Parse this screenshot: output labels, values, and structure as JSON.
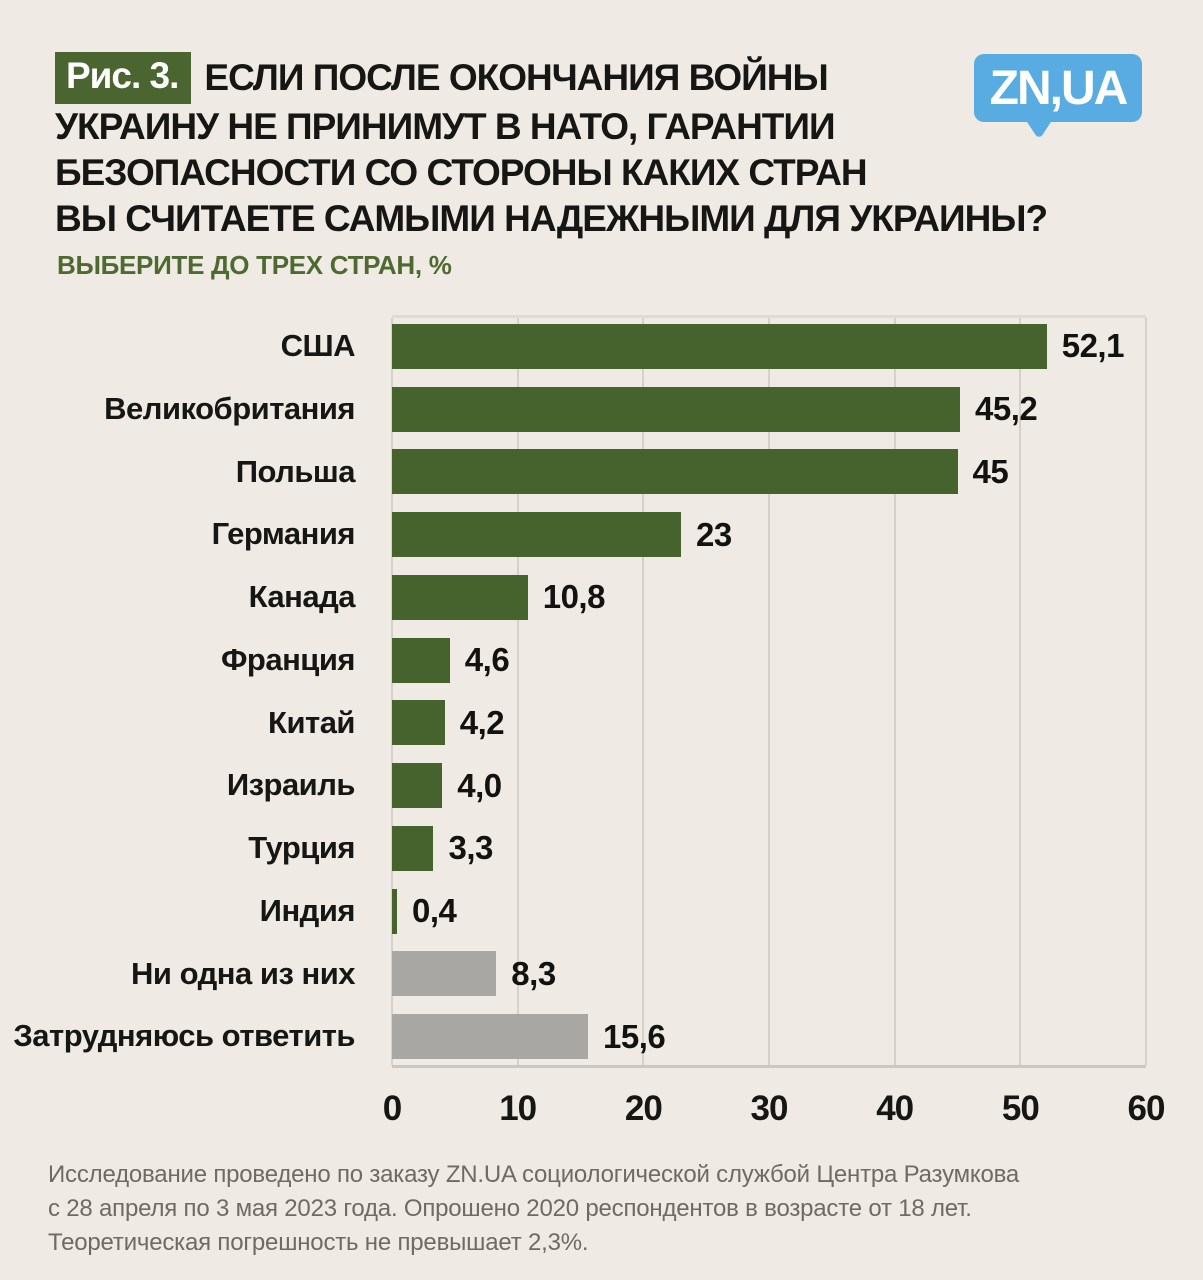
{
  "figure_badge": "Рис. 3.",
  "title_lines": [
    "ЕСЛИ ПОСЛЕ ОКОНЧАНИЯ ВОЙНЫ",
    "УКРАИНУ НЕ ПРИНИМУТ В НАТО, ГАРАНТИИ",
    "БЕЗОПАСНОСТИ СО СТОРОНЫ КАКИХ СТРАН",
    "ВЫ СЧИТАЕТЕ САМЫМИ НАДЕЖНЫМИ ДЛЯ УКРАИНЫ?"
  ],
  "subtitle": "ВЫБЕРИТЕ ДО ТРЕХ СТРАН, %",
  "logo": {
    "text": "ZN,UA",
    "color": "#58ace2"
  },
  "chart_data": {
    "type": "bar",
    "orientation": "horizontal",
    "title": "ЕСЛИ ПОСЛЕ ОКОНЧАНИЯ ВОЙНЫ УКРАИНУ НЕ ПРИНИМУТ В НАТО, ГАРАНТИИ БЕЗОПАСНОСТИ СО СТОРОНЫ КАКИХ СТРАН ВЫ СЧИТАЕТЕ САМЫМИ НАДЕЖНЫМИ ДЛЯ УКРАИНЫ?",
    "subtitle": "ВЫБЕРИТЕ ДО ТРЕХ СТРАН, %",
    "categories": [
      "США",
      "Великобритания",
      "Польша",
      "Германия",
      "Канада",
      "Франция",
      "Китай",
      "Израиль",
      "Турция",
      "Индия",
      "Ни одна из них",
      "Затрудняюсь ответить"
    ],
    "values": [
      52.1,
      45.2,
      45,
      23,
      10.8,
      4.6,
      4.2,
      4.0,
      3.3,
      0.4,
      8.3,
      15.6
    ],
    "value_labels": [
      "52,1",
      "45,2",
      "45",
      "23",
      "10,8",
      "4,6",
      "4,2",
      "4,0",
      "3,3",
      "0,4",
      "8,3",
      "15,6"
    ],
    "muted_indices": [
      10,
      11
    ],
    "bar_color": "#46622d",
    "muted_bar_color": "#a9a7a4",
    "x_ticks": [
      0,
      10,
      20,
      30,
      40,
      50,
      60
    ],
    "xlim": [
      0,
      60
    ],
    "grid": true,
    "legend": false,
    "xlabel": "",
    "ylabel": ""
  },
  "footer_lines": [
    "Исследование проведено по заказу ZN.UA социологической службой Центра Разумкова",
    "с 28 апреля по 3 мая 2023 года. Опрошено 2020 респондентов в возрасте от 18 лет.",
    "Теоретическая погрешность не превышает 2,3%."
  ]
}
